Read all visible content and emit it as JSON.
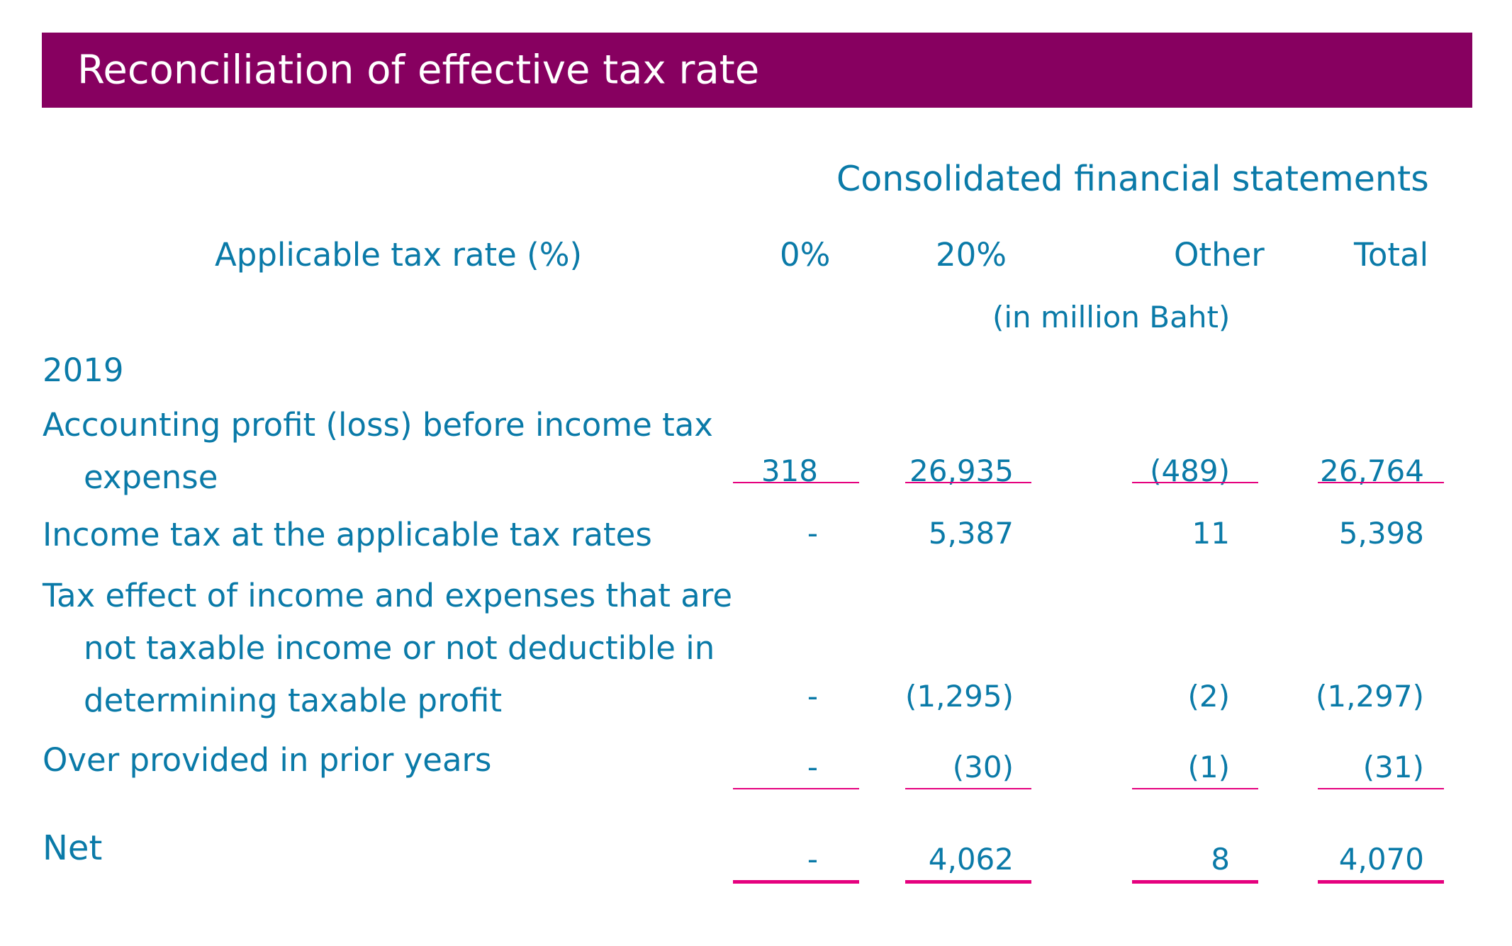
{
  "title": "Reconciliation of effective tax rate",
  "table": {
    "group_header": "Consolidated financial statements",
    "rate_label": "Applicable tax rate (%)",
    "columns": [
      "0%",
      "20%",
      "Other",
      "Total"
    ],
    "unit": "(in million Baht)",
    "year": "2019",
    "rows": [
      {
        "label_lines": [
          "Accounting profit (loss) before income tax",
          "expense"
        ],
        "values": [
          "318",
          "26,935",
          "(489)",
          "26,764"
        ]
      },
      {
        "label_lines": [
          "Income tax at the applicable tax rates"
        ],
        "values": [
          "-",
          "5,387",
          "11",
          "5,398"
        ]
      },
      {
        "label_lines": [
          "Tax effect of income and expenses that are",
          "not taxable income or not deductible in",
          "determining taxable profit"
        ],
        "values": [
          "-",
          "(1,295)",
          "(2)",
          "(1,297)"
        ]
      },
      {
        "label_lines": [
          "Over provided in prior years"
        ],
        "values": [
          "-",
          "(30)",
          "(1)",
          "(31)"
        ]
      }
    ],
    "net": {
      "label": "Net",
      "values": [
        "-",
        "4,062",
        "8",
        "4,070"
      ]
    }
  }
}
